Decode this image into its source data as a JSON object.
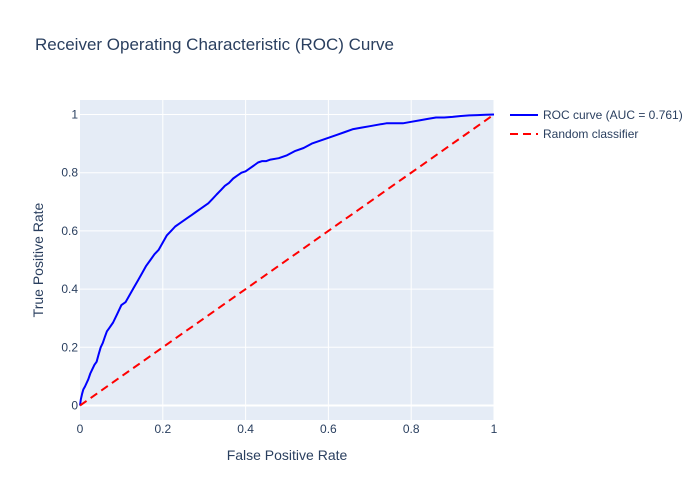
{
  "chart_data": {
    "type": "line",
    "title": "Receiver Operating Characteristic (ROC) Curve",
    "xlabel": "False Positive Rate",
    "ylabel": "True Positive Rate",
    "xlim": [
      0,
      1
    ],
    "ylim": [
      -0.05,
      1.05
    ],
    "x_ticks": [
      0,
      0.2,
      0.4,
      0.6,
      0.8,
      1
    ],
    "x_tick_labels": [
      "0",
      "0.2",
      "0.4",
      "0.6",
      "0.8",
      "1"
    ],
    "y_ticks": [
      0,
      0.2,
      0.4,
      0.6,
      0.8,
      1
    ],
    "y_tick_labels": [
      "0",
      "0.2",
      "0.4",
      "0.6",
      "0.8",
      "1"
    ],
    "grid": true,
    "legend_position": "top-right outside",
    "background_color": "#e5ecf6",
    "series": [
      {
        "name": "ROC curve (AUC = 0.761)",
        "color": "#0000ff",
        "dash": "solid",
        "x": [
          0,
          0.002,
          0.005,
          0.008,
          0.012,
          0.02,
          0.025,
          0.03,
          0.035,
          0.04,
          0.045,
          0.05,
          0.055,
          0.06,
          0.065,
          0.07,
          0.08,
          0.09,
          0.1,
          0.11,
          0.12,
          0.13,
          0.14,
          0.15,
          0.16,
          0.17,
          0.18,
          0.19,
          0.2,
          0.21,
          0.22,
          0.23,
          0.24,
          0.25,
          0.26,
          0.27,
          0.28,
          0.29,
          0.3,
          0.31,
          0.32,
          0.33,
          0.34,
          0.35,
          0.36,
          0.37,
          0.38,
          0.39,
          0.4,
          0.41,
          0.42,
          0.43,
          0.44,
          0.45,
          0.46,
          0.48,
          0.5,
          0.52,
          0.54,
          0.56,
          0.58,
          0.6,
          0.62,
          0.64,
          0.66,
          0.68,
          0.7,
          0.72,
          0.74,
          0.76,
          0.78,
          0.8,
          0.82,
          0.84,
          0.86,
          0.88,
          0.9,
          0.92,
          0.94,
          0.96,
          0.98,
          1.0
        ],
        "y": [
          0,
          0.02,
          0.04,
          0.055,
          0.065,
          0.09,
          0.11,
          0.125,
          0.14,
          0.15,
          0.175,
          0.2,
          0.215,
          0.235,
          0.255,
          0.265,
          0.285,
          0.315,
          0.345,
          0.355,
          0.38,
          0.405,
          0.43,
          0.455,
          0.48,
          0.5,
          0.52,
          0.535,
          0.56,
          0.585,
          0.6,
          0.615,
          0.625,
          0.635,
          0.645,
          0.655,
          0.665,
          0.675,
          0.685,
          0.695,
          0.71,
          0.725,
          0.74,
          0.755,
          0.765,
          0.78,
          0.79,
          0.8,
          0.805,
          0.815,
          0.825,
          0.835,
          0.84,
          0.84,
          0.845,
          0.85,
          0.86,
          0.875,
          0.885,
          0.9,
          0.91,
          0.92,
          0.93,
          0.94,
          0.95,
          0.955,
          0.96,
          0.965,
          0.97,
          0.97,
          0.97,
          0.975,
          0.98,
          0.985,
          0.99,
          0.99,
          0.992,
          0.995,
          0.997,
          0.998,
          0.999,
          1.0
        ]
      },
      {
        "name": "Random classifier",
        "color": "#ff0000",
        "dash": "dashed",
        "x": [
          0,
          1
        ],
        "y": [
          0,
          1
        ]
      }
    ]
  }
}
